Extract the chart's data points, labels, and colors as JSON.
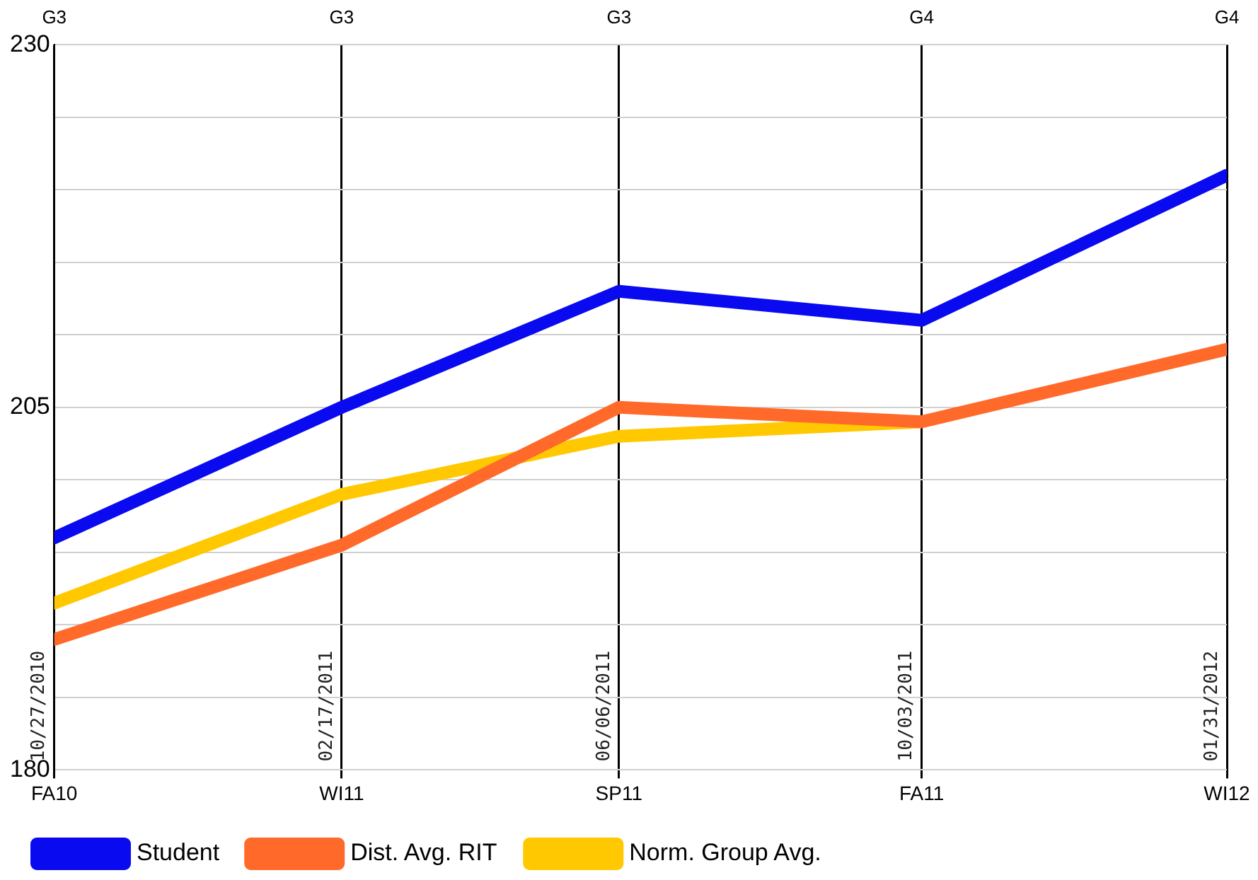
{
  "chart_data": {
    "type": "line",
    "x": [
      "2010-10-27",
      "2011-02-17",
      "2011-06-06",
      "2011-10-03",
      "2012-01-31"
    ],
    "series": [
      {
        "name": "Student",
        "color": "#0a0af0",
        "values": [
          196,
          205,
          213,
          211,
          221
        ]
      },
      {
        "name": "Dist. Avg. RIT",
        "color": "#ff6a2a",
        "values": [
          189,
          195.5,
          205,
          204,
          209
        ]
      },
      {
        "name": "Norm. Group Avg.",
        "color": "#ffc800",
        "values": [
          191.5,
          199,
          203,
          204,
          null
        ]
      }
    ],
    "xlim": [
      "2010-10-27",
      "2012-01-31"
    ],
    "xticks": [
      {
        "value": "2010-10-27",
        "label": "FA10"
      },
      {
        "value": "2011-02-17",
        "label": "WI11"
      },
      {
        "value": "2011-06-06",
        "label": "SP11"
      },
      {
        "value": "2011-10-03",
        "label": "FA11"
      },
      {
        "value": "2012-01-31",
        "label": "WI12"
      }
    ],
    "x2lim": [
      "2010-10-27",
      "2012-01-31"
    ],
    "x2ticks": [
      {
        "value": "2010-10-27",
        "label": "G3"
      },
      {
        "value": "2011-02-17",
        "label": "G3"
      },
      {
        "value": "2011-06-06",
        "label": "G3"
      },
      {
        "value": "2011-10-03",
        "label": "G4"
      },
      {
        "value": "2012-01-31",
        "label": "G4"
      }
    ],
    "ylim": [
      180,
      230
    ],
    "yticks": [
      180,
      {
        "value": 185,
        "label": null
      },
      {
        "value": 190,
        "label": null
      },
      {
        "value": 195,
        "label": null
      },
      {
        "value": 200,
        "label": null
      },
      205,
      {
        "value": 210,
        "label": null
      },
      {
        "value": 215,
        "label": null
      },
      {
        "value": 220,
        "label": null
      },
      {
        "value": 225,
        "label": null
      },
      230
    ],
    "annotations": [
      "10/27/2010",
      "02/17/2011",
      "06/06/2011",
      "10/03/2011",
      "01/31/2012"
    ],
    "grid": true,
    "legend": "bottom",
    "marker": "none",
    "line_style": "solid"
  }
}
